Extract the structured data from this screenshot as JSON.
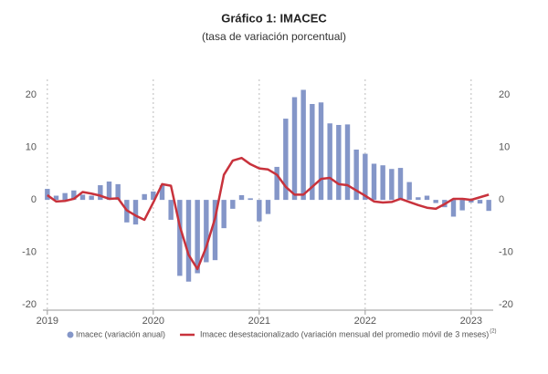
{
  "chart_data": {
    "type": "bar",
    "title": "Gráfico 1:  IMACEC",
    "subtitle": "(tasa de variación porcentual)",
    "categories": [
      "2019",
      null,
      null,
      null,
      null,
      null,
      null,
      null,
      null,
      null,
      null,
      null,
      "2020",
      null,
      null,
      null,
      null,
      null,
      null,
      null,
      null,
      null,
      null,
      null,
      "2021",
      null,
      null,
      null,
      null,
      null,
      null,
      null,
      null,
      null,
      null,
      null,
      "2022",
      null,
      null,
      null,
      null,
      null,
      null,
      null,
      null,
      null,
      null,
      null,
      "2023",
      null,
      null
    ],
    "series": [
      {
        "name": "Imacec (variación anual)",
        "type": "bar",
        "color": "#8496c8",
        "values": [
          2.1,
          0.8,
          1.3,
          1.8,
          1.0,
          0.8,
          2.8,
          3.5,
          3.0,
          -4.3,
          -4.7,
          1.1,
          1.6,
          2.8,
          -3.8,
          -14.5,
          -15.6,
          -14.0,
          -11.9,
          -11.5,
          -5.4,
          -1.7,
          0.9,
          0.3,
          -4.1,
          -2.7,
          6.3,
          15.5,
          19.6,
          21.0,
          18.3,
          18.6,
          14.6,
          14.3,
          14.4,
          9.6,
          8.8,
          6.9,
          6.6,
          5.9,
          6.1,
          3.4,
          0.5,
          0.8,
          -0.6,
          -1.4,
          -3.2,
          -2.0,
          -0.5,
          -0.7,
          -2.1
        ]
      },
      {
        "name": "Imacec desestacionalizado (variación mensual del promedio móvil de 3 meses)",
        "name_note": "(2)",
        "type": "line",
        "color": "#c8323c",
        "values": [
          0.9,
          -0.3,
          -0.2,
          0.2,
          1.5,
          1.2,
          0.8,
          0.2,
          0.3,
          -2.0,
          -3.0,
          -3.8,
          -0.5,
          3.0,
          2.7,
          -5.0,
          -10.5,
          -13.2,
          -9.0,
          -3.5,
          4.8,
          7.5,
          8.0,
          6.8,
          6.0,
          5.8,
          4.8,
          2.5,
          1.0,
          1.0,
          2.5,
          4.0,
          4.2,
          3.0,
          2.8,
          1.8,
          0.8,
          -0.3,
          -0.5,
          -0.4,
          0.2,
          -0.4,
          -1.0,
          -1.5,
          -1.7,
          -0.8,
          0.2,
          0.2,
          0.0,
          0.5,
          1.0
        ]
      }
    ],
    "ylim": [
      -20,
      23
    ],
    "yticks": [
      -20,
      -10,
      0,
      10,
      20
    ],
    "y2lim": [
      -20,
      23
    ],
    "y2ticks": [
      -20,
      -10,
      0,
      10,
      20
    ],
    "grid": "x",
    "legend": "bottom"
  }
}
